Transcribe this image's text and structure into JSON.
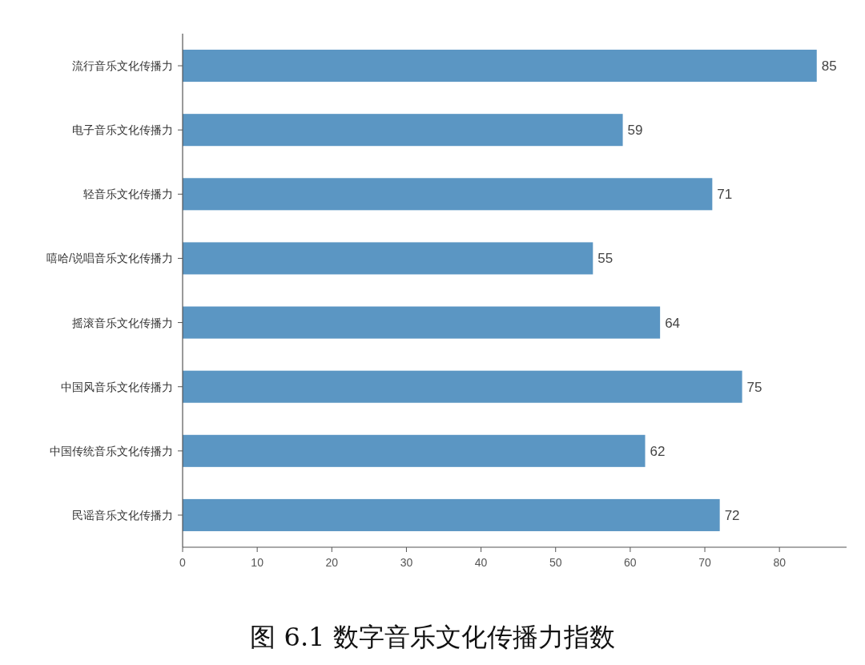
{
  "chart_data": {
    "type": "bar",
    "orientation": "horizontal",
    "title": "图 6.1 数字音乐文化传播力指数",
    "categories": [
      "流行音乐文化传播力",
      "电子音乐文化传播力",
      "轻音乐文化传播力",
      "嘻哈/说唱音乐文化传播力",
      "摇滚音乐文化传播力",
      "中国风音乐文化传播力",
      "中国传统音乐文化传播力",
      "民谣音乐文化传播力"
    ],
    "values": [
      85,
      59,
      71,
      55,
      64,
      75,
      62,
      72
    ],
    "color": "#5b96c3",
    "xlim": [
      0,
      89
    ],
    "xticks": [
      0,
      10,
      20,
      30,
      40,
      50,
      60,
      70,
      80
    ],
    "data_labels": true,
    "grid": false
  }
}
